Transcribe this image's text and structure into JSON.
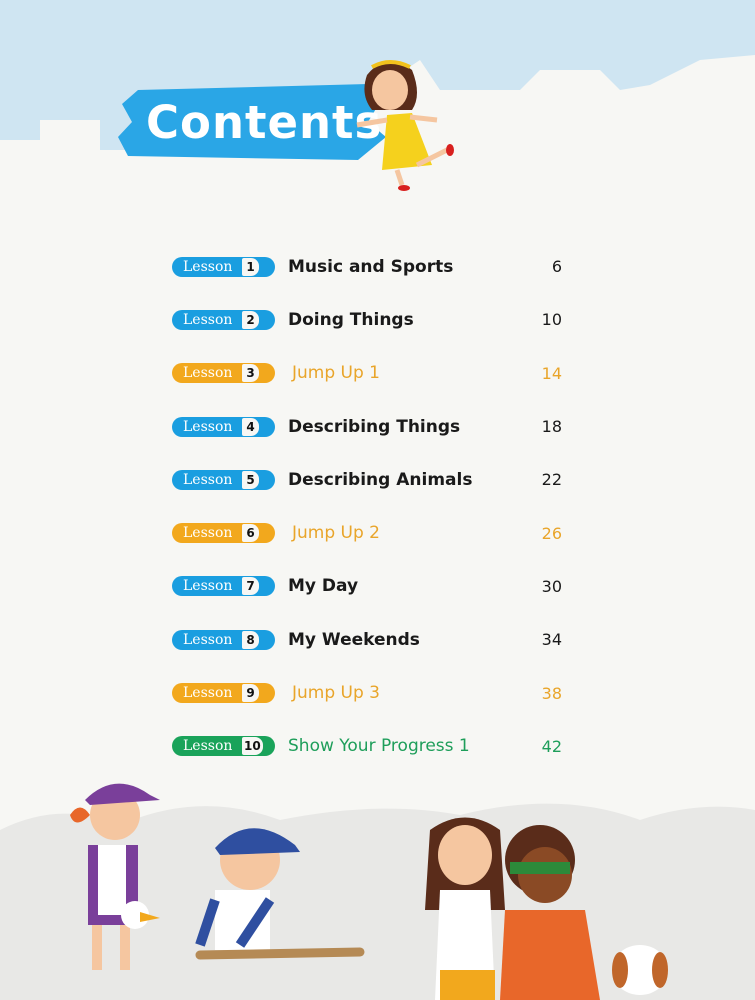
{
  "header": {
    "title": "Contents"
  },
  "colors": {
    "lesson": "#1a9ee0",
    "jump_up": "#f2a81d",
    "progress": "#1aa35a",
    "banner": "#2aa6e6"
  },
  "lessons": [
    {
      "badge": "Lesson",
      "number": "1",
      "title": "Music and Sports",
      "page": "6",
      "type": "lesson"
    },
    {
      "badge": "Lesson",
      "number": "2",
      "title": "Doing Things",
      "page": "10",
      "type": "lesson"
    },
    {
      "badge": "Lesson",
      "number": "3",
      "title": "Jump Up 1",
      "page": "14",
      "type": "jump"
    },
    {
      "badge": "Lesson",
      "number": "4",
      "title": "Describing Things",
      "page": "18",
      "type": "lesson"
    },
    {
      "badge": "Lesson",
      "number": "5",
      "title": "Describing Animals",
      "page": "22",
      "type": "lesson"
    },
    {
      "badge": "Lesson",
      "number": "6",
      "title": "Jump Up 2",
      "page": "26",
      "type": "jump"
    },
    {
      "badge": "Lesson",
      "number": "7",
      "title": "My Day",
      "page": "30",
      "type": "lesson"
    },
    {
      "badge": "Lesson",
      "number": "8",
      "title": "My Weekends",
      "page": "34",
      "type": "lesson"
    },
    {
      "badge": "Lesson",
      "number": "9",
      "title": "Jump Up 3",
      "page": "38",
      "type": "jump"
    },
    {
      "badge": "Lesson",
      "number": "10",
      "title": "Show Your Progress 1",
      "page": "42",
      "type": "progress"
    }
  ]
}
